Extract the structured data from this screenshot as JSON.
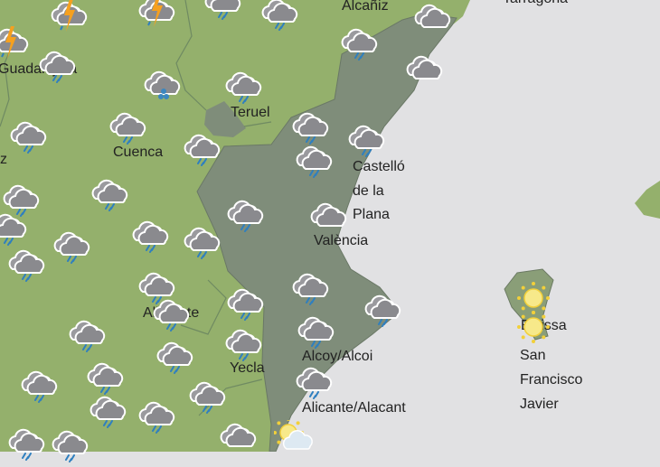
{
  "map": {
    "colors": {
      "sea": "#e1e1e3",
      "land": "#94b06c",
      "region_highlight": "#7f8d7a",
      "border": "#5f7a5a"
    },
    "labels": {
      "tarragona": "Tarragona",
      "alcaniz": "Alcañiz",
      "guadalajara": "Guadalajara",
      "teruel": "Teruel",
      "cuenca": "Cuenca",
      "edge_z": "z",
      "castello_1": "Castelló",
      "castello_2": "de la",
      "castello_3": "Plana",
      "valencia": "València",
      "albacete": "Albacete",
      "yecla": "Yecla",
      "alcoy": "Alcoy/Alcoi",
      "alicante": "Alicante/Alacant",
      "eivissa": "Eivissa",
      "sfj_1": "San",
      "sfj_2": "Francisco",
      "sfj_3": "Javier"
    },
    "weather_icons": [
      "thunderstorm",
      "thunderstorm",
      "rain",
      "rain",
      "cloudy",
      "thunderstorm",
      "rain",
      "hail",
      "rain",
      "rain",
      "cloudy",
      "rain",
      "rain",
      "rain",
      "rain",
      "rain",
      "rain",
      "rain",
      "rain",
      "rain",
      "cloudy",
      "rain",
      "rain",
      "rain",
      "rain",
      "rain",
      "rain",
      "rain",
      "rain",
      "rain",
      "rain",
      "rain",
      "rain",
      "rain",
      "rain",
      "rain",
      "rain",
      "rain",
      "rain",
      "rain",
      "rain",
      "cloudy",
      "rain",
      "sun-cloud",
      "sun",
      "sun",
      "rain"
    ]
  }
}
